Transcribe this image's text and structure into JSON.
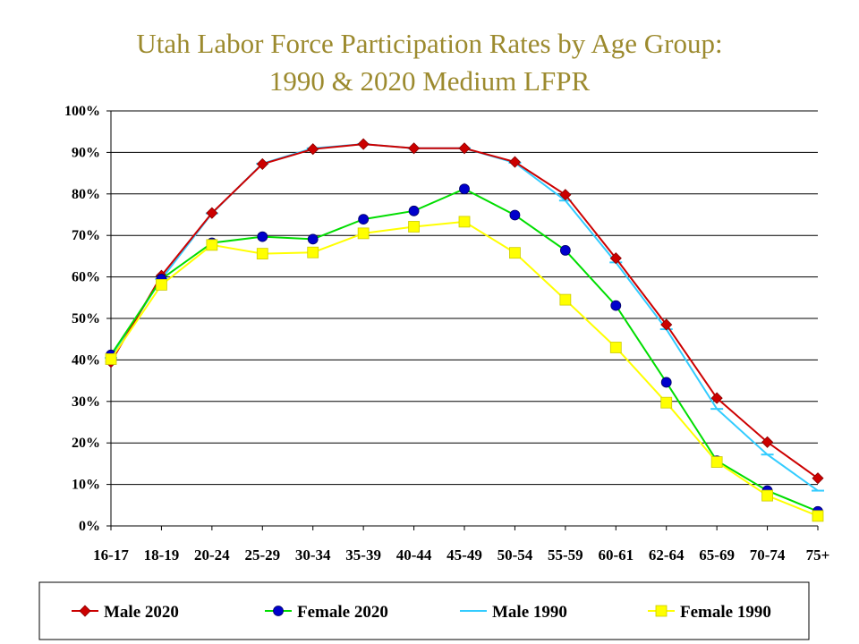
{
  "title": {
    "line1": "Utah Labor Force Participation Rates by Age Group:",
    "line2": "1990 & 2020 Medium LFPR"
  },
  "chart_data": {
    "type": "line",
    "title": "Utah Labor Force Participation Rates by Age Group: 1990 & 2020 Medium LFPR",
    "xlabel": "",
    "ylabel": "",
    "categories": [
      "16-17",
      "18-19",
      "20-24",
      "25-29",
      "30-34",
      "35-39",
      "40-44",
      "45-49",
      "50-54",
      "55-59",
      "60-61",
      "62-64",
      "65-69",
      "70-74",
      "75+"
    ],
    "yticks": [
      "0%",
      "10%",
      "20%",
      "30%",
      "40%",
      "50%",
      "60%",
      "70%",
      "80%",
      "90%",
      "100%"
    ],
    "ylim": [
      0,
      100
    ],
    "grid": true,
    "legend_position": "bottom",
    "series": [
      {
        "name": "Male   2020",
        "color": "#cc0000",
        "marker": "diamond",
        "marker_color": "#cc0000",
        "values": [
          39.5,
          60.3,
          75.4,
          87.2,
          90.8,
          92.0,
          91.0,
          91.0,
          87.7,
          79.8,
          64.5,
          48.5,
          30.8,
          20.2,
          11.5
        ]
      },
      {
        "name": "Female 2020",
        "color": "#00dd00",
        "marker": "circle",
        "marker_color": "#0000cc",
        "values": [
          41.2,
          59.5,
          68.2,
          69.7,
          69.1,
          73.9,
          75.9,
          81.2,
          74.9,
          66.4,
          53.1,
          34.6,
          15.7,
          8.5,
          3.5
        ]
      },
      {
        "name": "Male   1990",
        "color": "#33ccff",
        "marker": "dash",
        "marker_color": "#33ccff",
        "values": [
          40.5,
          59.5,
          75.3,
          87.3,
          91.0,
          92.0,
          91.0,
          91.0,
          87.5,
          78.4,
          63.5,
          47.4,
          28.2,
          17.2,
          8.5
        ]
      },
      {
        "name": "Female 1990",
        "color": "#ffff00",
        "marker": "square",
        "marker_color": "#ffff00",
        "values": [
          40.2,
          58.1,
          67.7,
          65.6,
          65.9,
          70.5,
          72.1,
          73.3,
          65.8,
          54.5,
          43.0,
          29.7,
          15.4,
          7.3,
          2.4
        ]
      }
    ]
  }
}
